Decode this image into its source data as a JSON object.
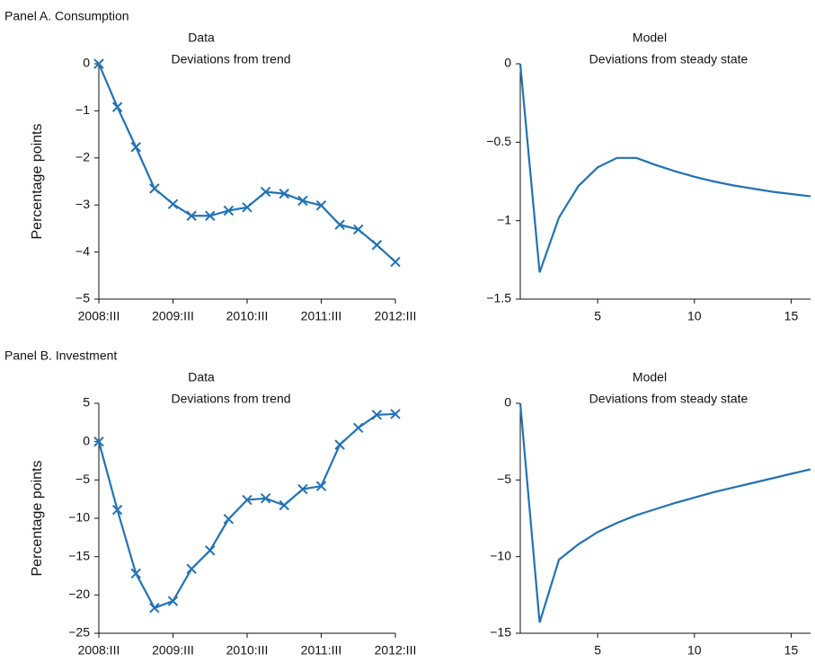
{
  "chart_data": [
    {
      "type": "line",
      "panel": "Panel A. Consumption",
      "title": "Data",
      "subtitle": "Deviations from trend",
      "ylabel": "Percentage points",
      "categories": [
        "2008:III",
        null,
        null,
        null,
        "2009:III",
        null,
        null,
        null,
        "2010:III",
        null,
        null,
        null,
        "2011:III",
        null,
        null,
        null,
        "2012:III"
      ],
      "values": [
        0,
        -0.92,
        -1.77,
        -2.65,
        -2.98,
        -3.23,
        -3.23,
        -3.12,
        -3.05,
        -2.72,
        -2.76,
        -2.91,
        -3.01,
        -3.42,
        -3.52,
        -3.85,
        -4.21
      ],
      "color": "#2272b6",
      "marker": "x",
      "ylim": [
        -5,
        0
      ],
      "yticks": [
        {
          "value": -5,
          "label": "−5"
        },
        {
          "value": -4,
          "label": "−4"
        },
        {
          "value": -3,
          "label": "−3"
        },
        {
          "value": -2,
          "label": "−2"
        },
        {
          "value": -1,
          "label": "−1"
        },
        0
      ]
    },
    {
      "type": "line",
      "title": "Model",
      "subtitle": "Deviations from steady state",
      "x": [
        1,
        2,
        3,
        4,
        5,
        6,
        7,
        8,
        9,
        10,
        11,
        12,
        13,
        14,
        15,
        16
      ],
      "values": [
        0,
        -1.33,
        -0.98,
        -0.78,
        -0.66,
        -0.6,
        -0.6,
        -0.645,
        -0.685,
        -0.72,
        -0.75,
        -0.775,
        -0.795,
        -0.815,
        -0.83,
        -0.845
      ],
      "color": "#2272b6",
      "xlim": [
        1,
        16
      ],
      "xticks": [
        5,
        10,
        15
      ],
      "ylim": [
        -1.5,
        0
      ],
      "yticks": [
        {
          "value": -1.5,
          "label": "−1.5"
        },
        {
          "value": -1,
          "label": "−1"
        },
        {
          "value": -0.5,
          "label": "−0.5"
        },
        0
      ]
    },
    {
      "type": "line",
      "panel": "Panel B. Investment",
      "title": "Data",
      "subtitle": "Deviations from trend",
      "ylabel": "Percentage points",
      "categories": [
        "2008:III",
        null,
        null,
        null,
        "2009:III",
        null,
        null,
        null,
        "2010:III",
        null,
        null,
        null,
        "2011:III",
        null,
        null,
        null,
        "2012:III"
      ],
      "values": [
        0,
        -8.9,
        -17.2,
        -21.7,
        -20.8,
        -16.6,
        -14.2,
        -10.1,
        -7.6,
        -7.4,
        -8.3,
        -6.2,
        -5.8,
        -0.4,
        1.8,
        3.5,
        3.6
      ],
      "color": "#2272b6",
      "marker": "x",
      "ylim": [
        -25,
        5
      ],
      "yticks": [
        {
          "value": -25,
          "label": "−25"
        },
        {
          "value": -20,
          "label": "−20"
        },
        {
          "value": -15,
          "label": "−15"
        },
        {
          "value": -10,
          "label": "−10"
        },
        {
          "value": -5,
          "label": "−5"
        },
        0,
        5
      ]
    },
    {
      "type": "line",
      "title": "Model",
      "subtitle": "Deviations from steady state",
      "x": [
        1,
        2,
        3,
        4,
        5,
        6,
        7,
        8,
        9,
        10,
        11,
        12,
        13,
        14,
        15,
        16
      ],
      "values": [
        0,
        -14.3,
        -10.2,
        -9.2,
        -8.4,
        -7.8,
        -7.3,
        -6.9,
        -6.5,
        -6.15,
        -5.8,
        -5.5,
        -5.2,
        -4.9,
        -4.6,
        -4.3
      ],
      "color": "#2272b6",
      "xlim": [
        1,
        16
      ],
      "xticks": [
        5,
        10,
        15
      ],
      "ylim": [
        -15,
        0
      ],
      "yticks": [
        {
          "value": -15,
          "label": "−15"
        },
        {
          "value": -10,
          "label": "−10"
        },
        {
          "value": -5,
          "label": "−5"
        },
        0
      ]
    }
  ]
}
